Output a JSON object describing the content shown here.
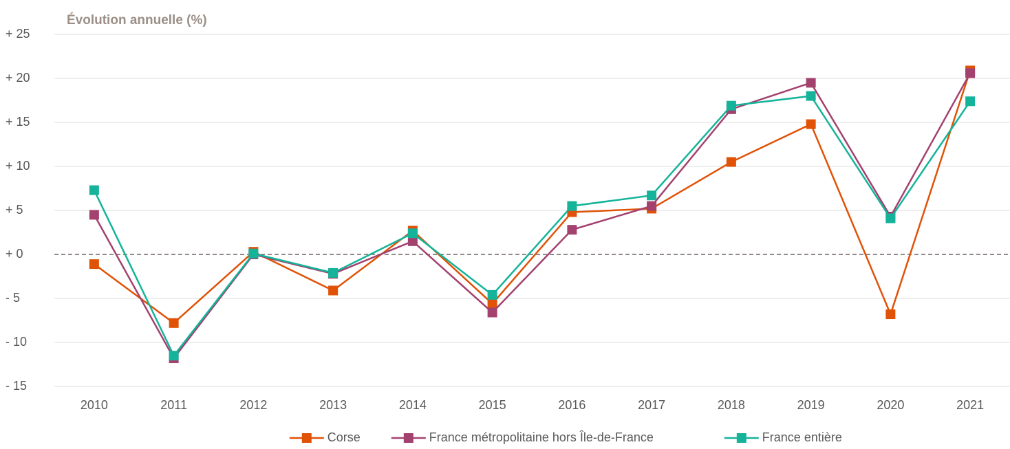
{
  "chart_data": {
    "type": "line",
    "title": "Évolution annuelle (%)",
    "categories": [
      "2010",
      "2011",
      "2012",
      "2013",
      "2014",
      "2015",
      "2016",
      "2017",
      "2018",
      "2019",
      "2020",
      "2021"
    ],
    "series": [
      {
        "name": "Corse",
        "color": "#e05206",
        "values": [
          -1.1,
          -7.8,
          0.3,
          -4.1,
          2.7,
          -5.6,
          4.8,
          5.2,
          10.5,
          14.8,
          -6.8,
          20.9
        ]
      },
      {
        "name": "France métropolitaine hors Île-de-France",
        "color": "#a3416f",
        "values": [
          4.5,
          -11.8,
          0.0,
          -2.2,
          1.5,
          -6.6,
          2.8,
          5.5,
          16.5,
          19.5,
          4.3,
          20.6
        ]
      },
      {
        "name": "France entière",
        "color": "#14b39a",
        "values": [
          7.3,
          -11.5,
          0.1,
          -2.1,
          2.4,
          -4.6,
          5.5,
          6.7,
          16.9,
          18.0,
          4.1,
          17.4
        ]
      }
    ],
    "ylim": [
      -15,
      25
    ],
    "yticks": [
      {
        "value": -15,
        "label": "- 15"
      },
      {
        "value": -10,
        "label": "- 10"
      },
      {
        "value": -5,
        "label": "- 5"
      },
      {
        "value": 0,
        "label": "+ 0"
      },
      {
        "value": 5,
        "label": "+ 5"
      },
      {
        "value": 10,
        "label": "+ 10"
      },
      {
        "value": 15,
        "label": "+ 15"
      },
      {
        "value": 20,
        "label": "+ 20"
      },
      {
        "value": 25,
        "label": "+ 25"
      }
    ],
    "grid": true,
    "legend": "bottom"
  }
}
